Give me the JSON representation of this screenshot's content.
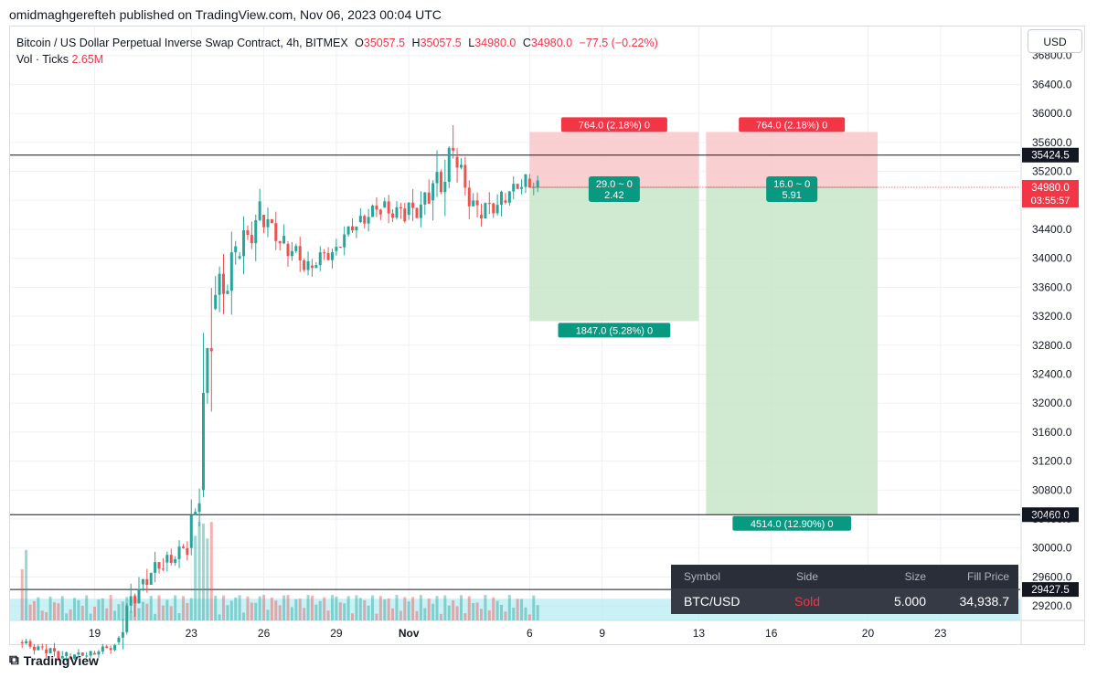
{
  "header": {
    "published": "omidmaghgerefteh published on TradingView.com, Nov 06, 2023 00:04 UTC"
  },
  "legend": {
    "title": "Bitcoin / US Dollar Perpetual Inverse Swap Contract, 4h, BITMEX",
    "o_label": "O",
    "o_value": "35057.5",
    "h_label": "H",
    "h_value": "35057.5",
    "l_label": "L",
    "l_value": "34980.0",
    "c_label": "C",
    "c_value": "34980.0",
    "change": "−77.5 (−0.22%)",
    "vol_label": "Vol · Ticks",
    "vol_value": "2.65M"
  },
  "currency_button": "USD",
  "colors": {
    "up": "#26a69a",
    "down": "#ef5350",
    "stop_zone": "#f8c7c9",
    "target_zone": "#c8e6c9",
    "loss_label": "#f23645",
    "profit_label": "#089981",
    "support_zone": "#b2ebf2"
  },
  "chart_data": {
    "type": "candlestick",
    "interval": "4h",
    "ylim": [
      29000,
      37200
    ],
    "y_ticks": [
      29200,
      29600,
      30000,
      30400,
      30800,
      31200,
      31600,
      32000,
      32400,
      32800,
      33200,
      33600,
      34000,
      34400,
      34800,
      35200,
      35600,
      36000,
      36400,
      36800
    ],
    "x_ticks": [
      "19",
      "23",
      "26",
      "29",
      "Nov",
      "6",
      "9",
      "13",
      "16",
      "20",
      "23"
    ],
    "x_tick_days": [
      19,
      23,
      26,
      29,
      32,
      37,
      40,
      44,
      47,
      51,
      54
    ],
    "x_range_days": [
      15.5,
      57.3
    ],
    "horizontal_lines": [
      {
        "label": "35424.5",
        "price": 35424.5
      },
      {
        "label": "30460.0",
        "price": 30460.0
      },
      {
        "label": "29427.5",
        "price": 29427.5
      }
    ],
    "last_price": {
      "label": "34980.0",
      "countdown": "03:55:57",
      "price": 34980.0
    },
    "support_zone": [
      29000,
      29300
    ],
    "positions": [
      {
        "side": "short",
        "entry": 34980.0,
        "stop": 35744.0,
        "target": 33133.0,
        "start_day": 37.0,
        "end_day": 44.0,
        "stop_label": "764.0 (2.18%) 0",
        "center_label_1": "29.0 ~ 0",
        "center_label_2": "2.42",
        "target_label": "1847.0 (5.28%) 0"
      },
      {
        "side": "short",
        "entry": 34980.0,
        "stop": 35744.0,
        "target": 30466.0,
        "start_day": 44.3,
        "end_day": 51.4,
        "stop_label": "764.0 (2.18%) 0",
        "center_label_1": "16.0 ~ 0",
        "center_label_2": "5.91",
        "target_label": "4514.0 (12.90%) 0"
      }
    ],
    "ohlc_daily": [
      {
        "day": 16,
        "o": 28700,
        "h": 28900,
        "l": 28500,
        "c": 28600
      },
      {
        "day": 17,
        "o": 28600,
        "h": 28800,
        "l": 28300,
        "c": 28500
      },
      {
        "day": 18,
        "o": 28500,
        "h": 28700,
        "l": 28400,
        "c": 28550
      },
      {
        "day": 19,
        "o": 28550,
        "h": 28750,
        "l": 28400,
        "c": 28650
      },
      {
        "day": 20,
        "o": 28700,
        "h": 29900,
        "l": 28600,
        "c": 29500
      },
      {
        "day": 21,
        "o": 29500,
        "h": 30200,
        "l": 29300,
        "c": 29800
      },
      {
        "day": 22,
        "o": 29800,
        "h": 30400,
        "l": 29600,
        "c": 30000
      },
      {
        "day": 23,
        "o": 30000,
        "h": 31500,
        "l": 29900,
        "c": 30800
      },
      {
        "day": 23.5,
        "o": 30800,
        "h": 35900,
        "l": 30700,
        "c": 33300
      },
      {
        "day": 24,
        "o": 33300,
        "h": 35200,
        "l": 32900,
        "c": 34000
      },
      {
        "day": 25,
        "o": 34000,
        "h": 35100,
        "l": 33500,
        "c": 34600
      },
      {
        "day": 26,
        "o": 34600,
        "h": 35000,
        "l": 34000,
        "c": 34200
      },
      {
        "day": 27,
        "o": 34200,
        "h": 34700,
        "l": 33700,
        "c": 33900
      },
      {
        "day": 28,
        "o": 33900,
        "h": 34300,
        "l": 33500,
        "c": 34100
      },
      {
        "day": 29,
        "o": 34100,
        "h": 34600,
        "l": 33900,
        "c": 34500
      },
      {
        "day": 30,
        "o": 34500,
        "h": 34900,
        "l": 34100,
        "c": 34700
      },
      {
        "day": 31,
        "o": 34700,
        "h": 35100,
        "l": 34200,
        "c": 34600
      },
      {
        "day": 32,
        "o": 34600,
        "h": 35300,
        "l": 34100,
        "c": 34800
      },
      {
        "day": 33,
        "o": 34800,
        "h": 36100,
        "l": 34000,
        "c": 35400
      },
      {
        "day": 34,
        "o": 35400,
        "h": 35600,
        "l": 34300,
        "c": 34600
      },
      {
        "day": 35,
        "o": 34600,
        "h": 35000,
        "l": 34000,
        "c": 34800
      },
      {
        "day": 36,
        "o": 34800,
        "h": 35300,
        "l": 34600,
        "c": 35100
      },
      {
        "day": 37,
        "o": 35100,
        "h": 35300,
        "l": 34500,
        "c": 34980
      }
    ],
    "volume_ticks_relative": {
      "max_day": 16,
      "spike_day": 23.5
    }
  },
  "fill_table": {
    "headers": [
      "Symbol",
      "Side",
      "Size",
      "Fill Price"
    ],
    "row": {
      "symbol": "BTC/USD",
      "side": "Sold",
      "size": "5.000",
      "fill_price": "34,938.7"
    }
  },
  "footer": {
    "brand": "TradingView"
  }
}
